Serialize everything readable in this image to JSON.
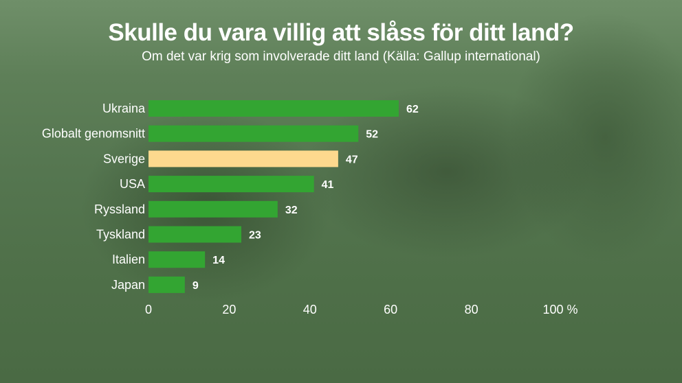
{
  "chart_data": {
    "type": "bar",
    "orientation": "horizontal",
    "title": "Skulle du vara villig att slåss för ditt land?",
    "subtitle": "Om det var krig som involverade ditt land (Källa: Gallup international)",
    "categories": [
      "Ukraina",
      "Globalt genomsnitt",
      "Sverige",
      "USA",
      "Ryssland",
      "Tyskland",
      "Italien",
      "Japan"
    ],
    "values": [
      62,
      52,
      47,
      41,
      32,
      23,
      14,
      9
    ],
    "highlight": "Sverige",
    "xlim": [
      0,
      100
    ],
    "xticks": [
      "0",
      "20",
      "40",
      "60",
      "80",
      "100 %"
    ],
    "grid": false,
    "colors": {
      "bar": "#33a532",
      "highlight": "#fdd98e",
      "text": "#ffffff"
    }
  }
}
